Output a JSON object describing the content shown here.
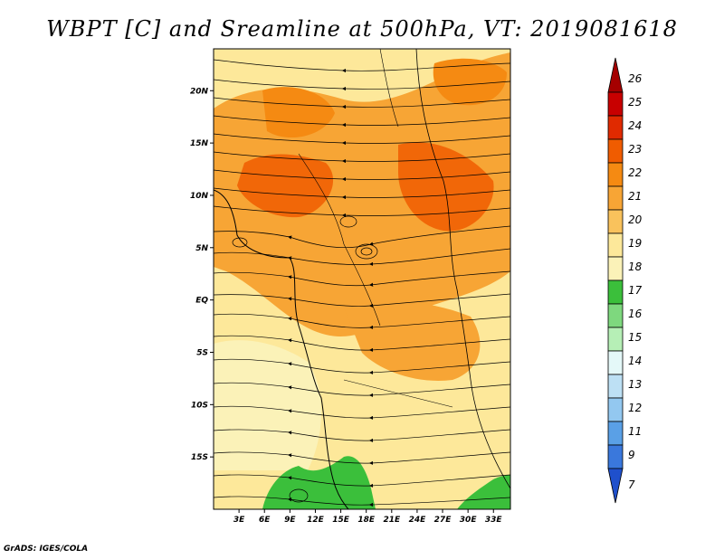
{
  "title": "WBPT [C] and Sreamline at 500hPa, VT: 2019081618",
  "credit": "GrADS: IGES/COLA",
  "map": {
    "lon_range": [
      0,
      35
    ],
    "lat_range": [
      -20,
      24
    ],
    "lat_ticks": [
      "20N",
      "15N",
      "10N",
      "5N",
      "EQ",
      "5S",
      "10S",
      "15S"
    ],
    "lon_ticks": [
      "3E",
      "6E",
      "9E",
      "12E",
      "15E",
      "18E",
      "21E",
      "24E",
      "27E",
      "30E",
      "33E"
    ]
  },
  "colorbar": {
    "labels": [
      "26",
      "25",
      "24",
      "23",
      "22",
      "21",
      "20",
      "19",
      "18",
      "17",
      "16",
      "15",
      "14",
      "13",
      "12",
      "11",
      "9",
      "7"
    ],
    "colors": [
      "#a50000",
      "#c80000",
      "#e02a00",
      "#f05c00",
      "#f58a12",
      "#f7a535",
      "#f9c25c",
      "#fde89a",
      "#fbf2b8",
      "#3bbf3b",
      "#7ed87e",
      "#b6efb6",
      "#e4f8f8",
      "#bde0f4",
      "#93c8f0",
      "#5aa0e6",
      "#3a78dc",
      "#1f50cc"
    ]
  }
}
